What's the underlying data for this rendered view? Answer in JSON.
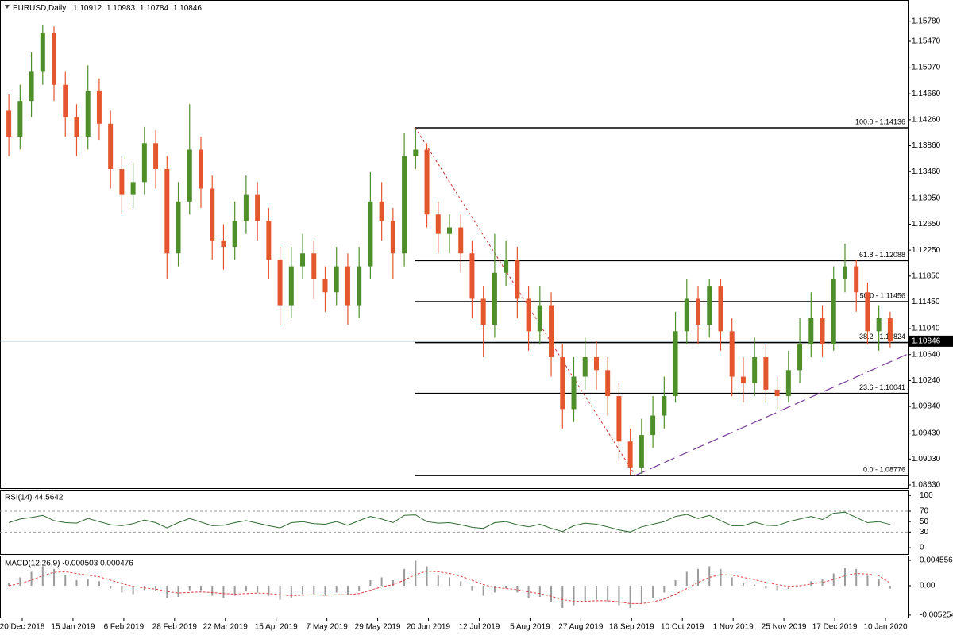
{
  "chart_data": [
    {
      "type": "candlestick",
      "title": "EURUSD,Daily",
      "header_values": [
        1.10912,
        1.10983,
        1.10784,
        1.10846
      ],
      "xlabels": [
        "20 Dec 2018",
        "15 Jan 2019",
        "6 Feb 2019",
        "28 Feb 2019",
        "22 Mar 2019",
        "15 Apr 2019",
        "7 May 2019",
        "29 May 2019",
        "20 Jun 2019",
        "12 Jul 2019",
        "5 Aug 2019",
        "27 Aug 2019",
        "18 Sep 2019",
        "10 Oct 2019",
        "1 Nov 2019",
        "25 Nov 2019",
        "17 Dec 2019",
        "10 Jan 2020"
      ],
      "open": [
        1.144,
        1.14,
        1.1455,
        1.15,
        1.156,
        1.148,
        1.143,
        1.14,
        1.147,
        1.142,
        1.135,
        1.131,
        1.133,
        1.139,
        1.135,
        1.122,
        1.13,
        1.138,
        1.132,
        1.124,
        1.123,
        1.127,
        1.131,
        1.127,
        1.121,
        1.114,
        1.12,
        1.122,
        1.118,
        1.116,
        1.12,
        1.114,
        1.12,
        1.13,
        1.127,
        1.122,
        1.137,
        1.138,
        1.128,
        1.125,
        1.126,
        1.122,
        1.115,
        1.111,
        1.119,
        1.121,
        1.115,
        1.11,
        1.114,
        1.106,
        1.098,
        1.103,
        1.106,
        1.104,
        1.1,
        1.093,
        1.089,
        1.094,
        1.097,
        1.1,
        1.11,
        1.115,
        1.111,
        1.117,
        1.11,
        1.103,
        1.102,
        1.106,
        1.101,
        1.1,
        1.104,
        1.108,
        1.112,
        1.108,
        1.118,
        1.12,
        1.116,
        1.11,
        1.112
      ],
      "high": [
        1.1465,
        1.148,
        1.153,
        1.1572,
        1.157,
        1.15,
        1.145,
        1.151,
        1.149,
        1.144,
        1.137,
        1.136,
        1.1415,
        1.141,
        1.137,
        1.133,
        1.145,
        1.14,
        1.134,
        1.1265,
        1.13,
        1.134,
        1.133,
        1.129,
        1.123,
        1.123,
        1.125,
        1.124,
        1.12,
        1.123,
        1.122,
        1.123,
        1.1345,
        1.133,
        1.129,
        1.1405,
        1.1412,
        1.139,
        1.13,
        1.128,
        1.128,
        1.124,
        1.117,
        1.125,
        1.124,
        1.123,
        1.117,
        1.117,
        1.116,
        1.108,
        1.106,
        1.109,
        1.1085,
        1.106,
        1.102,
        1.095,
        1.0965,
        1.1,
        1.103,
        1.113,
        1.118,
        1.117,
        1.118,
        1.118,
        1.112,
        1.106,
        1.109,
        1.108,
        1.103,
        1.107,
        1.112,
        1.116,
        1.114,
        1.12,
        1.1235,
        1.121,
        1.1175,
        1.114,
        1.113
      ],
      "low": [
        1.137,
        1.138,
        1.143,
        1.148,
        1.1455,
        1.14,
        1.137,
        1.138,
        1.1395,
        1.132,
        1.128,
        1.129,
        1.131,
        1.132,
        1.118,
        1.12,
        1.128,
        1.129,
        1.121,
        1.1195,
        1.121,
        1.125,
        1.124,
        1.118,
        1.111,
        1.112,
        1.118,
        1.115,
        1.113,
        1.114,
        1.111,
        1.112,
        1.118,
        1.124,
        1.118,
        1.12,
        1.135,
        1.126,
        1.122,
        1.122,
        1.119,
        1.112,
        1.106,
        1.109,
        1.117,
        1.112,
        1.107,
        1.108,
        1.103,
        1.095,
        1.096,
        1.101,
        1.101,
        1.097,
        1.09,
        1.0878,
        1.088,
        1.092,
        1.095,
        1.099,
        1.108,
        1.108,
        1.109,
        1.107,
        1.1,
        1.099,
        1.1,
        1.099,
        1.098,
        1.099,
        1.102,
        1.106,
        1.106,
        1.107,
        1.116,
        1.113,
        1.108,
        1.107,
        1.1075
      ],
      "close": [
        1.14,
        1.1455,
        1.15,
        1.156,
        1.148,
        1.143,
        1.14,
        1.147,
        1.142,
        1.135,
        1.131,
        1.133,
        1.139,
        1.135,
        1.122,
        1.13,
        1.138,
        1.132,
        1.124,
        1.123,
        1.127,
        1.131,
        1.127,
        1.121,
        1.114,
        1.12,
        1.122,
        1.118,
        1.116,
        1.12,
        1.114,
        1.12,
        1.13,
        1.127,
        1.122,
        1.137,
        1.138,
        1.128,
        1.125,
        1.126,
        1.122,
        1.115,
        1.111,
        1.119,
        1.121,
        1.115,
        1.11,
        1.114,
        1.106,
        1.098,
        1.103,
        1.106,
        1.104,
        1.1,
        1.093,
        1.089,
        1.094,
        1.097,
        1.1,
        1.11,
        1.115,
        1.111,
        1.117,
        1.11,
        1.103,
        1.102,
        1.106,
        1.101,
        1.1,
        1.104,
        1.108,
        1.112,
        1.108,
        1.118,
        1.12,
        1.116,
        1.11,
        1.112,
        1.10846
      ],
      "up_color": "#4f8f2a",
      "down_color": "#e4572e",
      "ylim": [
        1.08581,
        1.16106
      ],
      "yticks": [
        {
          "value": 1.1578,
          "label": "1.15780"
        },
        {
          "value": 1.1547,
          "label": "1.15470"
        },
        {
          "value": 1.1507,
          "label": "1.15070"
        },
        {
          "value": 1.1466,
          "label": "1.14660"
        },
        {
          "value": 1.1426,
          "label": "1.14260"
        },
        {
          "value": 1.1386,
          "label": "1.13860"
        },
        {
          "value": 1.1346,
          "label": "1.13460"
        },
        {
          "value": 1.1305,
          "label": "1.13050"
        },
        {
          "value": 1.1265,
          "label": "1.12650"
        },
        {
          "value": 1.1225,
          "label": "1.12250"
        },
        {
          "value": 1.1185,
          "label": "1.11850"
        },
        {
          "value": 1.1145,
          "label": "1.11450"
        },
        {
          "value": 1.1104,
          "label": "1.11040"
        },
        {
          "value": 1.1064,
          "label": "1.10640"
        },
        {
          "value": 1.1024,
          "label": "1.10240"
        },
        {
          "value": 1.0984,
          "label": "1.09840"
        },
        {
          "value": 1.0943,
          "label": "1.09430"
        },
        {
          "value": 1.0903,
          "label": "1.09030"
        },
        {
          "value": 1.0863,
          "label": "1.08630"
        }
      ],
      "last_price": 1.10846,
      "fib_levels": [
        {
          "value": 1.14136,
          "label": "100.0 - 1.14136"
        },
        {
          "value": 1.12088,
          "label": "61.8 - 1.12088"
        },
        {
          "value": 1.11456,
          "label": "50.0 - 1.11456"
        },
        {
          "value": 1.10824,
          "label": "38.2 - 1.10824"
        },
        {
          "value": 1.10041,
          "label": "23.6 - 1.10041"
        },
        {
          "value": 1.08776,
          "label": "0.0 - 1.08776"
        }
      ]
    },
    {
      "type": "line",
      "title": "RSI(14) 44.5642",
      "color": "#2e6b2e",
      "values": [
        48,
        55,
        58,
        62,
        52,
        48,
        47,
        56,
        50,
        44,
        42,
        46,
        53,
        48,
        38,
        48,
        56,
        49,
        42,
        43,
        48,
        52,
        47,
        42,
        38,
        48,
        50,
        46,
        45,
        50,
        43,
        52,
        60,
        55,
        48,
        62,
        63,
        50,
        47,
        48,
        44,
        39,
        37,
        48,
        50,
        44,
        40,
        45,
        37,
        31,
        42,
        47,
        45,
        40,
        34,
        30,
        40,
        45,
        50,
        60,
        64,
        56,
        62,
        52,
        42,
        42,
        49,
        43,
        42,
        50,
        55,
        60,
        54,
        66,
        68,
        58,
        48,
        50,
        44.5642
      ],
      "ylim": [
        -12,
        111
      ],
      "yticks": [
        100,
        70,
        50,
        30,
        0
      ],
      "dashed_levels": [
        70,
        30
      ]
    },
    {
      "type": "macd",
      "title": "MACD(12,26,9) -0.000503 0.000476",
      "histogram_color": "#9a9a9a",
      "signal_color": "#e04040",
      "histogram": [
        0.0005,
        0.0015,
        0.0025,
        0.0035,
        0.003,
        0.002,
        0.001,
        0.0012,
        0.0008,
        -0.0005,
        -0.0012,
        -0.0015,
        -0.0008,
        -0.001,
        -0.0022,
        -0.002,
        -0.0008,
        -0.0008,
        -0.0018,
        -0.0022,
        -0.0018,
        -0.001,
        -0.0012,
        -0.0018,
        -0.0025,
        -0.0022,
        -0.0015,
        -0.0015,
        -0.0018,
        -0.0012,
        -0.0016,
        -0.001,
        0.001,
        0.0015,
        0.001,
        0.003,
        0.0045,
        0.0035,
        0.002,
        0.0015,
        0.0008,
        -0.0008,
        -0.0018,
        -0.0012,
        -0.0005,
        -0.0012,
        -0.0022,
        -0.002,
        -0.003,
        -0.004,
        -0.0035,
        -0.0028,
        -0.0025,
        -0.0028,
        -0.0035,
        -0.004,
        -0.0032,
        -0.0022,
        -0.0012,
        0.001,
        0.0025,
        0.003,
        0.0035,
        0.003,
        0.0015,
        0.0005,
        0.0002,
        -0.0005,
        -0.0008,
        -0.0006,
        0.0,
        0.0008,
        0.0012,
        0.0022,
        0.0032,
        0.003,
        0.0018,
        0.0012,
        -0.000503
      ],
      "signal": [
        0.0,
        0.0004,
        0.001,
        0.0018,
        0.0024,
        0.0025,
        0.0022,
        0.0019,
        0.0016,
        0.001,
        0.0004,
        -0.0001,
        -0.0004,
        -0.0006,
        -0.001,
        -0.0013,
        -0.0012,
        -0.0011,
        -0.0012,
        -0.0014,
        -0.0015,
        -0.0014,
        -0.0013,
        -0.0014,
        -0.0016,
        -0.0018,
        -0.0017,
        -0.0016,
        -0.0017,
        -0.0016,
        -0.0016,
        -0.0014,
        -0.0008,
        -0.0002,
        0.0002,
        0.001,
        0.002,
        0.0026,
        0.0025,
        0.0022,
        0.0017,
        0.001,
        0.0002,
        -0.0003,
        -0.0005,
        -0.0007,
        -0.0011,
        -0.0014,
        -0.0019,
        -0.0025,
        -0.0028,
        -0.0028,
        -0.0027,
        -0.0027,
        -0.0029,
        -0.0032,
        -0.0032,
        -0.0029,
        -0.0024,
        -0.0015,
        -0.0005,
        0.0006,
        0.0015,
        0.002,
        0.0019,
        0.0015,
        0.0011,
        0.0006,
        0.0002,
        -0.0001,
        0.0,
        0.0003,
        0.0006,
        0.0011,
        0.0018,
        0.0022,
        0.0021,
        0.0018,
        0.000476
      ],
      "ylim": [
        -0.0057,
        0.00541
      ],
      "yticks": [
        0.004556,
        {
          "value": 0,
          "label": "0.00"
        },
        -0.005254
      ]
    }
  ]
}
